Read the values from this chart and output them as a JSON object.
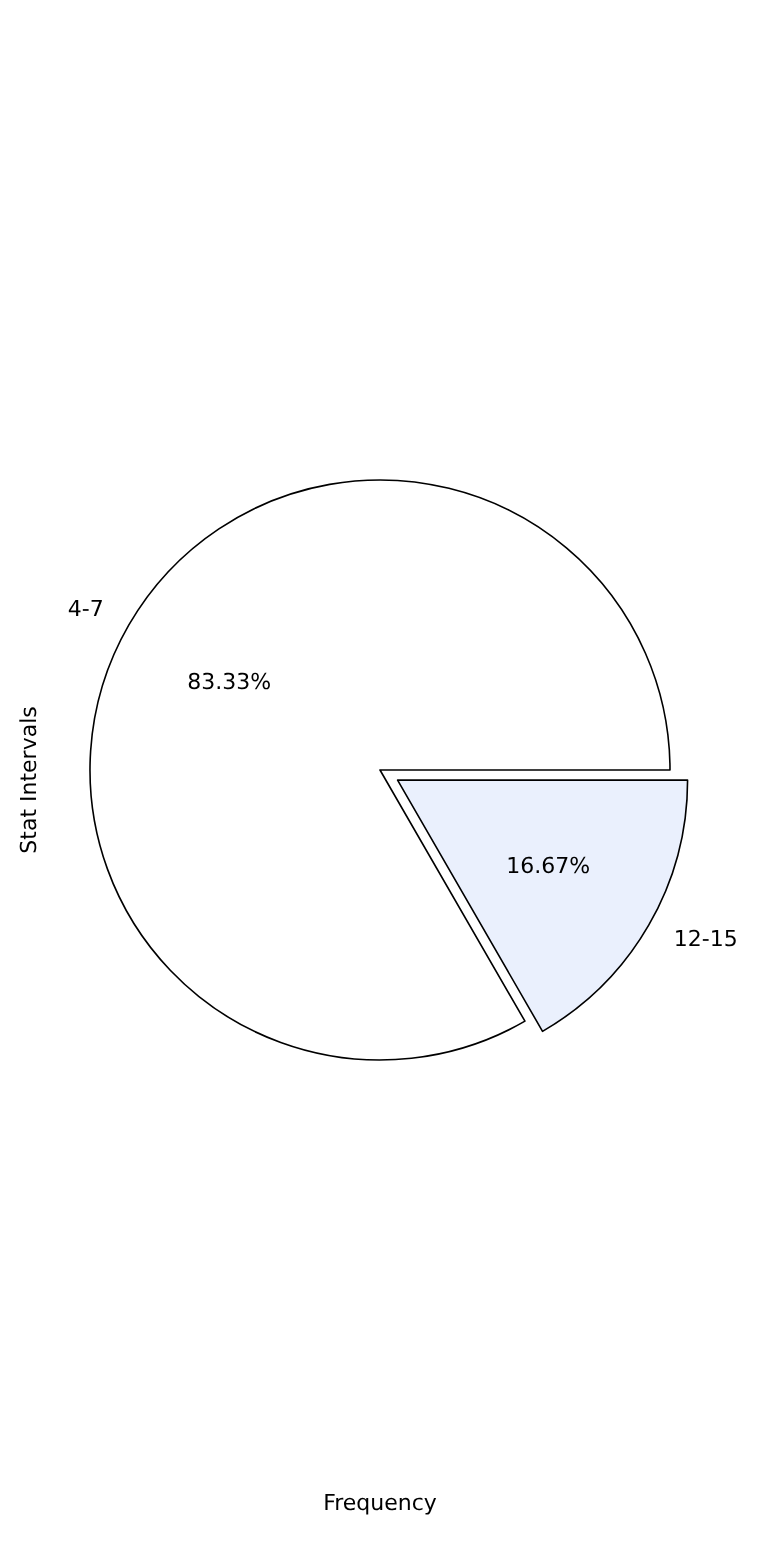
{
  "chart_data": {
    "type": "pie",
    "xlabel": "Frequency",
    "ylabel": "Stat Intervals",
    "categories": [
      "4-7",
      "12-15"
    ],
    "values": [
      83.33,
      16.67
    ],
    "colors": [
      "#ffffff",
      "#eaf0fd"
    ],
    "value_labels": [
      "83.33%",
      "16.67%"
    ]
  }
}
